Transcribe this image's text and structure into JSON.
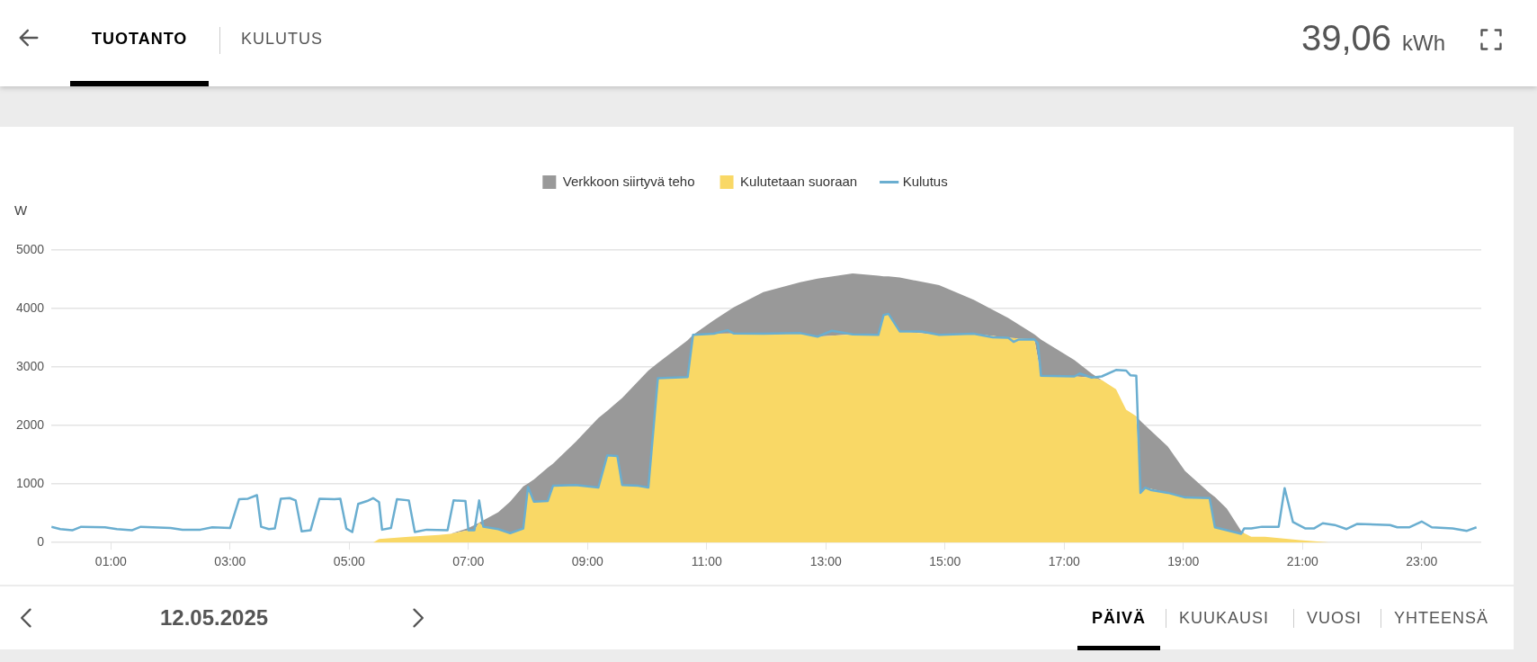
{
  "chart_data": {
    "type": "area",
    "ylabel": "W",
    "annotations": [
      "TUOTANTO",
      "KULUTUS",
      "39,06",
      "kWh",
      "12.05.2025",
      "PÄIVÄ",
      "KUUKAUSI",
      "VUOSI",
      "YHTEENSÄ"
    ],
    "x": [
      5.4,
      5.5,
      6.0,
      6.5,
      6.7,
      7.0,
      7.1,
      7.18,
      7.25,
      7.5,
      7.7,
      7.92,
      8.0,
      8.1,
      8.33,
      8.42,
      8.8,
      9.18,
      9.33,
      9.5,
      9.58,
      9.85,
      10.02,
      10.18,
      10.68,
      10.77,
      11.12,
      11.45,
      11.95,
      12.57,
      12.86,
      13.45,
      13.88,
      13.97,
      14.05,
      14.24,
      14.9,
      15.48,
      16.06,
      16.5,
      16.61,
      17.17,
      17.46,
      17.63,
      17.87,
      18.04,
      18.21,
      18.28,
      18.36,
      18.74,
      19.03,
      19.44,
      19.53,
      19.73,
      19.97,
      20.02,
      20.14,
      20.37,
      20.96,
      21.48
    ],
    "series": [
      {
        "name": "Kulutetaan suoraan",
        "color": "#f9d866",
        "values": [
          0,
          60,
          100,
          130,
          150,
          210,
          210,
          340,
          270,
          230,
          160,
          240,
          950,
          700,
          710,
          970,
          985,
          940,
          1490,
          1480,
          985,
          970,
          940,
          2810,
          2830,
          3550,
          3570,
          3575,
          3570,
          3580,
          3520,
          3560,
          3550,
          3890,
          3910,
          3610,
          3550,
          3570,
          3500,
          3475,
          2850,
          2840,
          2820,
          2780,
          2620,
          2270,
          2160,
          850,
          940,
          850,
          770,
          760,
          260,
          210,
          150,
          160,
          100,
          100,
          40,
          0
        ]
      },
      {
        "name": "Verkkoon siirtyvä teho",
        "color": "#999999",
        "values": [
          0,
          0,
          0,
          0,
          0,
          40,
          90,
          0,
          110,
          290,
          540,
          720,
          60,
          380,
          570,
          380,
          735,
          1190,
          760,
          920,
          1485,
          1790,
          2000,
          260,
          630,
          0,
          230,
          445,
          710,
          870,
          990,
          1040,
          1010,
          660,
          640,
          920,
          850,
          580,
          340,
          85,
          620,
          280,
          70,
          0,
          0,
          0,
          0,
          1230,
          1060,
          790,
          450,
          90,
          520,
          370,
          50,
          0,
          0,
          0,
          0,
          0
        ]
      },
      {
        "name": "Kulutus",
        "type": "line",
        "color": "#6aaed0",
        "x": [
          0,
          0.15,
          0.35,
          0.5,
          0.9,
          1.1,
          1.35,
          1.5,
          2.0,
          2.2,
          2.5,
          2.7,
          3.0,
          3.15,
          3.3,
          3.45,
          3.52,
          3.65,
          3.75,
          3.85,
          4.0,
          4.1,
          4.2,
          4.35,
          4.5,
          4.75,
          4.85,
          4.95,
          5.05,
          5.15,
          5.3,
          5.4,
          5.5,
          5.55,
          5.7,
          5.8,
          6.0,
          6.1,
          6.3,
          6.65,
          6.75,
          6.95,
          7.0,
          7.1,
          7.18,
          7.25,
          7.5,
          7.7,
          7.92,
          8.0,
          8.1,
          8.33,
          8.42,
          8.8,
          9.18,
          9.33,
          9.5,
          9.58,
          9.85,
          10.02,
          10.18,
          10.68,
          10.77,
          11.12,
          11.35,
          11.45,
          11.95,
          12.57,
          12.86,
          13.1,
          13.45,
          13.88,
          13.97,
          14.05,
          14.24,
          14.6,
          14.9,
          15.48,
          15.8,
          16.06,
          16.15,
          16.23,
          16.5,
          16.56,
          16.61,
          17.17,
          17.26,
          17.46,
          17.63,
          17.87,
          18.04,
          18.11,
          18.21,
          18.28,
          18.36,
          18.45,
          18.74,
          19.03,
          19.44,
          19.53,
          19.73,
          19.97,
          20.02,
          20.14,
          20.32,
          20.6,
          20.7,
          20.84,
          21.05,
          21.19,
          21.34,
          21.54,
          21.74,
          21.92,
          22.47,
          22.59,
          22.79,
          23.0,
          23.17,
          23.52,
          23.76,
          23.92
        ],
        "values": [
          270,
          230,
          210,
          270,
          260,
          230,
          210,
          270,
          250,
          220,
          220,
          260,
          250,
          740,
          750,
          810,
          270,
          230,
          240,
          750,
          760,
          720,
          190,
          210,
          750,
          740,
          750,
          240,
          180,
          660,
          710,
          760,
          690,
          220,
          250,
          740,
          720,
          180,
          220,
          210,
          720,
          710,
          210,
          210,
          720,
          270,
          230,
          160,
          240,
          950,
          700,
          710,
          970,
          985,
          940,
          1490,
          1480,
          985,
          970,
          940,
          2810,
          2830,
          3550,
          3570,
          3630,
          3575,
          3570,
          3580,
          3520,
          3620,
          3560,
          3550,
          3890,
          3910,
          3610,
          3610,
          3550,
          3570,
          3510,
          3500,
          3430,
          3470,
          3475,
          3400,
          2850,
          2840,
          2890,
          2820,
          2840,
          2950,
          2940,
          2860,
          2850,
          850,
          940,
          900,
          850,
          770,
          760,
          260,
          210,
          150,
          240,
          240,
          270,
          270,
          930,
          350,
          240,
          240,
          330,
          300,
          230,
          320,
          300,
          260,
          260,
          360,
          260,
          240,
          200,
          260
        ]
      }
    ],
    "stacked": true,
    "legend": "top",
    "grid": "y",
    "line_style": "solid",
    "xlim": [
      0,
      24
    ],
    "xticks": [
      {
        "value": 1,
        "label": "01:00"
      },
      {
        "value": 3,
        "label": "03:00"
      },
      {
        "value": 5,
        "label": "05:00"
      },
      {
        "value": 7,
        "label": "07:00"
      },
      {
        "value": 9,
        "label": "09:00"
      },
      {
        "value": 11,
        "label": "11:00"
      },
      {
        "value": 13,
        "label": "13:00"
      },
      {
        "value": 15,
        "label": "15:00"
      },
      {
        "value": 17,
        "label": "17:00"
      },
      {
        "value": 19,
        "label": "19:00"
      },
      {
        "value": 21,
        "label": "21:00"
      },
      {
        "value": 23,
        "label": "23:00"
      }
    ],
    "ylim": [
      0,
      5000
    ],
    "yticks": [
      0,
      1000,
      2000,
      3000,
      4000,
      5000
    ]
  }
}
